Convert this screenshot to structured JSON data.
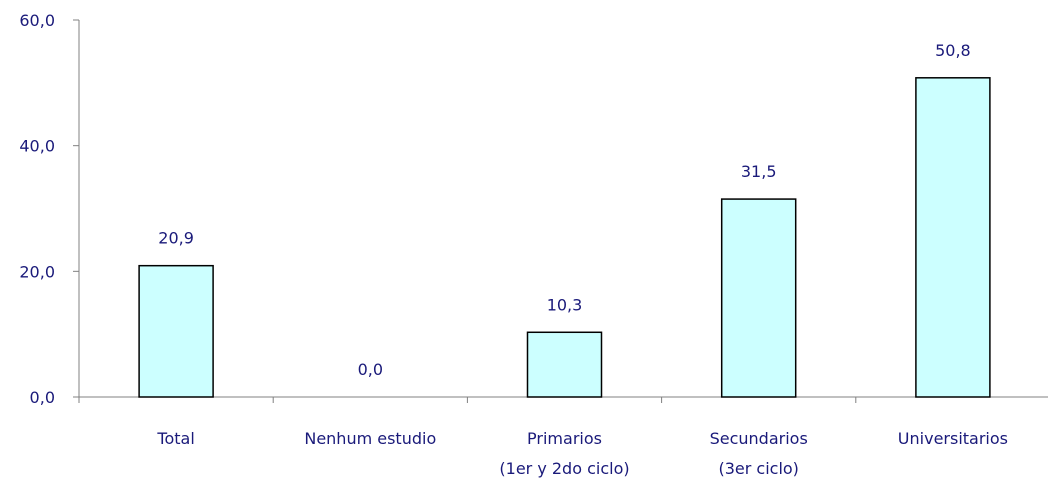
{
  "chart_data": {
    "type": "bar",
    "categories": [
      [
        "Total"
      ],
      [
        "Nenhum estudio"
      ],
      [
        "Primarios",
        "(1er y 2do ciclo)"
      ],
      [
        "Secundarios",
        "(3er ciclo)"
      ],
      [
        "Universitarios"
      ]
    ],
    "values": [
      20.9,
      0.0,
      10.3,
      31.5,
      50.8
    ],
    "data_labels": [
      "20,9",
      "0,0",
      "10,3",
      "31,5",
      "50,8"
    ],
    "y_ticks": [
      {
        "value": 0,
        "label": "0,0"
      },
      {
        "value": 20,
        "label": "20,0"
      },
      {
        "value": 40,
        "label": "40,0"
      },
      {
        "value": 60,
        "label": "60,0"
      }
    ],
    "ylim": [
      0,
      60
    ],
    "grid": false,
    "legend": "none",
    "colors": {
      "bar_fill": "#ccffff",
      "bar_stroke": "#000000",
      "axis": "#808080",
      "text": "#1a1a7a"
    }
  }
}
